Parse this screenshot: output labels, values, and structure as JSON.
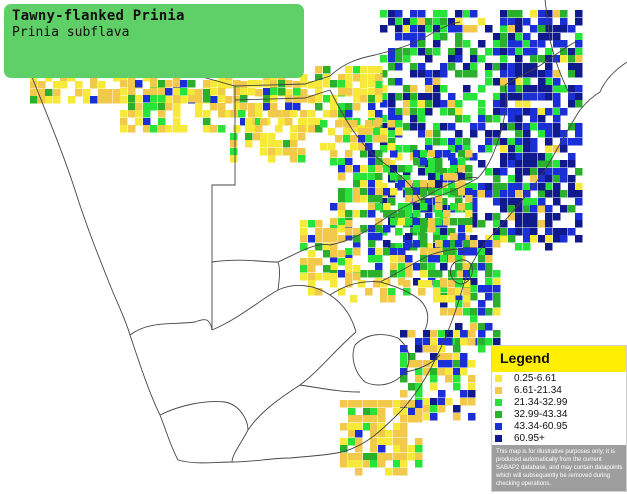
{
  "species": {
    "common_name": "Tawny-flanked Prinia",
    "scientific_name": "Prinia subflava"
  },
  "legend": {
    "title": "Legend",
    "entries": [
      {
        "label": "0.25-6.61",
        "color": "#f7e93a"
      },
      {
        "label": "6.61-21.34",
        "color": "#f2c94a"
      },
      {
        "label": "21.34-32.99",
        "color": "#27e33a"
      },
      {
        "label": "32.99-43.34",
        "color": "#2bb02e"
      },
      {
        "label": "43.34-60.95",
        "color": "#1a2fd6"
      },
      {
        "label": "60.95+",
        "color": "#101a8c"
      }
    ],
    "disclaimer": "This map is for illustrative purposes only; it is produced automatically from the current SABAP2 database, and may contain datapoints which will subsequently be removed during checking operations."
  },
  "colors": {
    "title_box": "#5fcf67",
    "legend_header": "#ffee00",
    "land": "#ffffff",
    "border_lines": "#444444"
  }
}
